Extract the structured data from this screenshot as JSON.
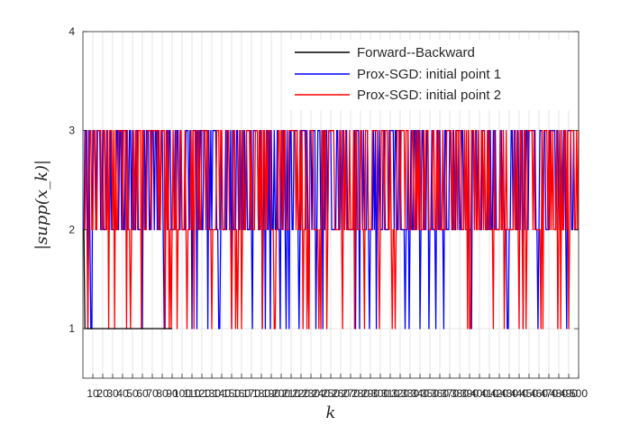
{
  "chart_data": {
    "type": "line",
    "xlabel": "k",
    "ylabel": "|supp(x_k)|",
    "xlim": [
      0,
      500
    ],
    "ylim": [
      0.5,
      4
    ],
    "yticks": [
      1,
      2,
      3,
      4
    ],
    "xtick_labels": [
      "10",
      "20",
      "30",
      "40",
      "50",
      "60",
      "70",
      "80",
      "90",
      "100",
      "110",
      "120",
      "130",
      "140",
      "150",
      "160",
      "170",
      "180",
      "190",
      "200",
      "210",
      "220",
      "230",
      "240",
      "250",
      "260",
      "270",
      "280",
      "290",
      "300",
      "310",
      "320",
      "330",
      "340",
      "350",
      "360",
      "370",
      "380",
      "390",
      "400",
      "410",
      "420",
      "430",
      "440",
      "450",
      "460",
      "470",
      "480",
      "490",
      "500"
    ],
    "xtick_values": [
      10,
      20,
      30,
      40,
      50,
      60,
      70,
      80,
      90,
      100,
      110,
      120,
      130,
      140,
      150,
      160,
      170,
      180,
      190,
      200,
      210,
      220,
      230,
      240,
      250,
      260,
      270,
      280,
      290,
      300,
      310,
      320,
      330,
      340,
      350,
      360,
      370,
      380,
      390,
      400,
      410,
      420,
      430,
      440,
      450,
      460,
      470,
      480,
      490,
      500
    ],
    "grid": true,
    "legend_position": "top-right",
    "series": [
      {
        "name": "Forward--Backward",
        "color": "#000000",
        "x": [
          0,
          1,
          2,
          3,
          90
        ],
        "y": [
          2,
          2,
          1,
          1,
          1
        ]
      },
      {
        "name": "Prox-SGD: initial point 1",
        "color": "#0000ff",
        "pattern_seed": 7,
        "x_start": 1,
        "x_end": 500,
        "levels": [
          1,
          2,
          3
        ],
        "approx_mix": {
          "level_3": 0.5,
          "level_2": 0.42,
          "level_1": 0.08
        }
      },
      {
        "name": "Prox-SGD: initial point 2",
        "color": "#ff0000",
        "pattern_seed": 13,
        "x_start": 1,
        "x_end": 500,
        "levels": [
          1,
          2,
          3
        ],
        "approx_mix": {
          "level_3": 0.5,
          "level_2": 0.42,
          "level_1": 0.08
        }
      }
    ]
  }
}
